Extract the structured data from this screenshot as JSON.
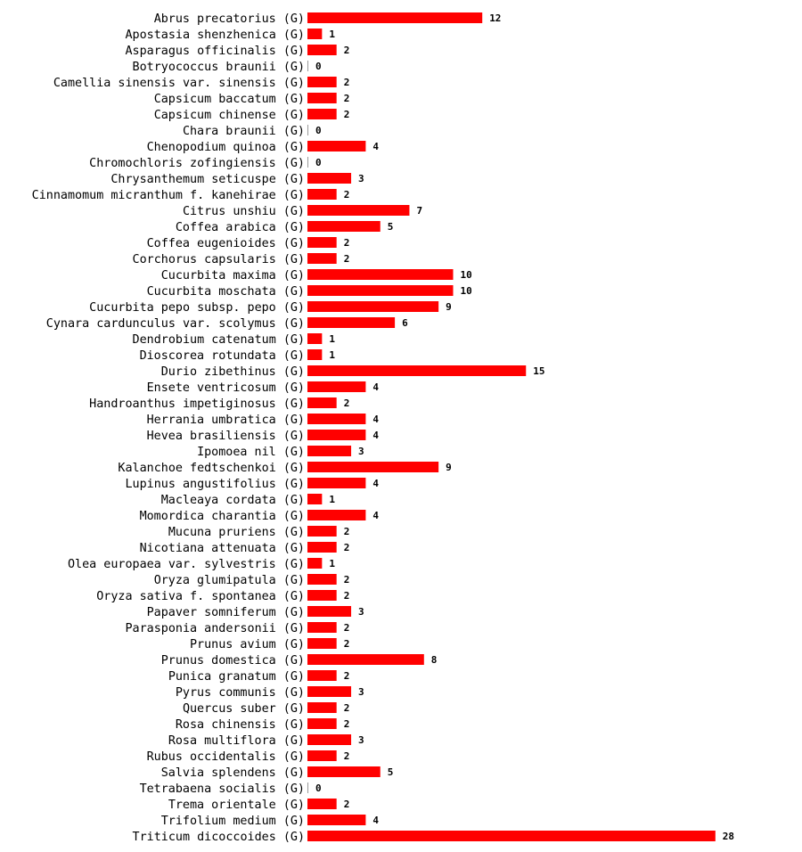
{
  "chart_data": {
    "type": "bar",
    "orientation": "horizontal",
    "bar_color": "#ff0000",
    "categories": [
      "Abrus precatorius (G)",
      "Apostasia shenzhenica (G)",
      "Asparagus officinalis (G)",
      "Botryococcus braunii (G)",
      "Camellia sinensis var. sinensis (G)",
      "Capsicum baccatum (G)",
      "Capsicum chinense (G)",
      "Chara braunii (G)",
      "Chenopodium quinoa (G)",
      "Chromochloris zofingiensis (G)",
      "Chrysanthemum seticuspe (G)",
      "Cinnamomum micranthum f. kanehirae (G)",
      "Citrus unshiu (G)",
      "Coffea arabica (G)",
      "Coffea eugenioides (G)",
      "Corchorus capsularis (G)",
      "Cucurbita maxima (G)",
      "Cucurbita moschata (G)",
      "Cucurbita pepo subsp. pepo (G)",
      "Cynara cardunculus var. scolymus (G)",
      "Dendrobium catenatum (G)",
      "Dioscorea rotundata (G)",
      "Durio zibethinus (G)",
      "Ensete ventricosum (G)",
      "Handroanthus impetiginosus (G)",
      "Herrania umbratica (G)",
      "Hevea brasiliensis (G)",
      "Ipomoea nil (G)",
      "Kalanchoe fedtschenkoi (G)",
      "Lupinus angustifolius (G)",
      "Macleaya cordata (G)",
      "Momordica charantia (G)",
      "Mucuna pruriens (G)",
      "Nicotiana attenuata (G)",
      "Olea europaea var. sylvestris (G)",
      "Oryza glumipatula (G)",
      "Oryza sativa f. spontanea (G)",
      "Papaver somniferum (G)",
      "Parasponia andersonii (G)",
      "Prunus avium (G)",
      "Prunus domestica (G)",
      "Punica granatum (G)",
      "Pyrus communis (G)",
      "Quercus suber (G)",
      "Rosa chinensis (G)",
      "Rosa multiflora (G)",
      "Rubus occidentalis (G)",
      "Salvia splendens (G)",
      "Tetrabaena socialis (G)",
      "Trema orientale (G)",
      "Trifolium medium (G)",
      "Triticum dicoccoides (G)"
    ],
    "values": [
      12,
      1,
      2,
      0,
      2,
      2,
      2,
      0,
      4,
      0,
      3,
      2,
      7,
      5,
      2,
      2,
      10,
      10,
      9,
      6,
      1,
      1,
      15,
      4,
      2,
      4,
      4,
      3,
      9,
      4,
      1,
      4,
      2,
      2,
      1,
      2,
      2,
      3,
      2,
      2,
      8,
      2,
      3,
      2,
      2,
      3,
      2,
      5,
      0,
      2,
      4,
      28
    ],
    "xlim": [
      0,
      28
    ],
    "title": "",
    "xlabel": "",
    "ylabel": "",
    "grid": false,
    "legend": "none"
  }
}
